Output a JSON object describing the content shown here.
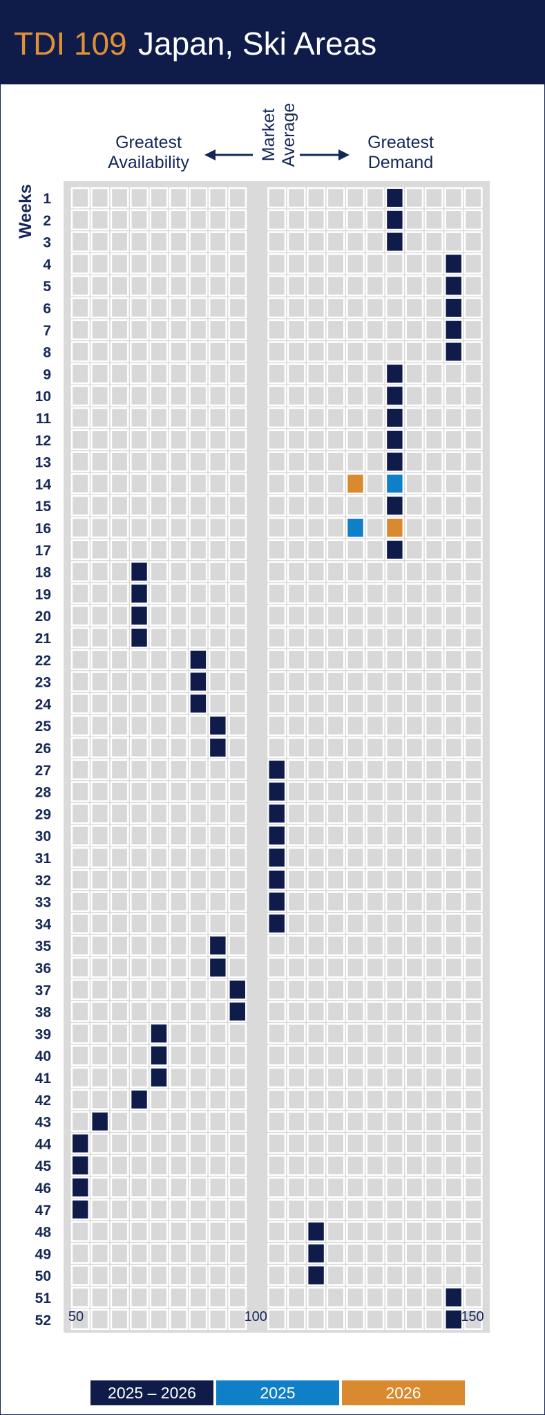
{
  "header": {
    "code": "TDI 109",
    "title": "Japan, Ski Areas"
  },
  "labels": {
    "left": "Greatest Availability",
    "right": "Greatest Demand",
    "middle": "Market Average",
    "weeks": "Weeks"
  },
  "colors": {
    "navy": "#0f1c4a",
    "blue": "#0f7fc7",
    "orange": "#d98a2e",
    "grid_bg": "#dadada",
    "cell": "#d8d8d8"
  },
  "chart_data": {
    "type": "heatmap",
    "xlabel": "",
    "ylabel": "Weeks",
    "x_ticks": [
      50,
      100,
      150
    ],
    "xlim": [
      50,
      150
    ],
    "weeks": [
      1,
      2,
      3,
      4,
      5,
      6,
      7,
      8,
      9,
      10,
      11,
      12,
      13,
      14,
      15,
      16,
      17,
      18,
      19,
      20,
      21,
      22,
      23,
      24,
      25,
      26,
      27,
      28,
      29,
      30,
      31,
      32,
      33,
      34,
      35,
      36,
      37,
      38,
      39,
      40,
      41,
      42,
      43,
      44,
      45,
      46,
      47,
      48,
      49,
      50,
      51,
      52
    ],
    "legend": [
      {
        "name": "2025 – 2026",
        "color": "#0f1c4a"
      },
      {
        "name": "2025",
        "color": "#0f7fc7"
      },
      {
        "name": "2026",
        "color": "#d98a2e"
      }
    ],
    "series": [
      {
        "name": "2025 – 2026",
        "color": "#0f1c4a",
        "values": [
          135,
          135,
          135,
          150,
          150,
          150,
          150,
          150,
          135,
          135,
          135,
          135,
          135,
          null,
          135,
          null,
          135,
          70,
          70,
          70,
          70,
          85,
          85,
          85,
          90,
          90,
          105,
          105,
          105,
          105,
          105,
          105,
          105,
          105,
          90,
          90,
          95,
          95,
          75,
          75,
          75,
          70,
          60,
          55,
          55,
          55,
          55,
          115,
          115,
          115,
          150,
          150
        ]
      },
      {
        "name": "2025",
        "color": "#0f7fc7",
        "points": [
          {
            "week": 14,
            "value": 135
          },
          {
            "week": 16,
            "value": 125
          }
        ]
      },
      {
        "name": "2026",
        "color": "#d98a2e",
        "points": [
          {
            "week": 14,
            "value": 125
          },
          {
            "week": 16,
            "value": 135
          }
        ]
      }
    ]
  }
}
